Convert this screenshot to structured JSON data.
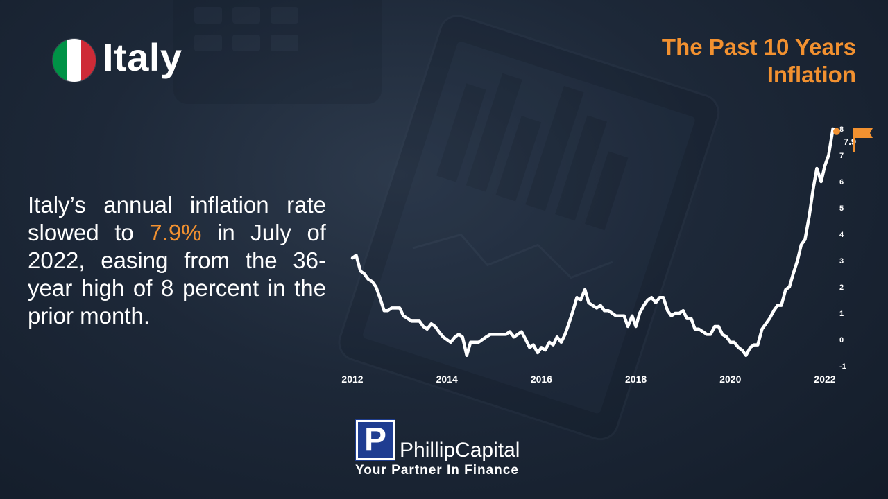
{
  "header": {
    "country": "Italy",
    "title_line1": "The Past 10 Years",
    "title_line2": "Inflation"
  },
  "description": {
    "before": "Italy’s annual inflation rate slowed to ",
    "highlight": "7.9%",
    "after": " in July of 2022, easing from the 36-year high of 8 percent in the prior month."
  },
  "brand": {
    "logo_letter": "P",
    "name": "PhillipCapital",
    "tagline": "Your Partner In Finance"
  },
  "colors": {
    "accent": "#f29130",
    "line": "#ffffff",
    "flag_green": "#009246",
    "flag_white": "#ffffff",
    "flag_red": "#ce2b37"
  },
  "icons": {
    "country_flag": "italy-flag-icon",
    "end_marker": "flag-icon"
  },
  "chart_data": {
    "type": "line",
    "title": "",
    "xlabel": "",
    "ylabel": "",
    "x_ticks": [
      "2012",
      "2014",
      "2016",
      "2018",
      "2020",
      "2022"
    ],
    "y_ticks": [
      -1,
      0,
      1,
      2,
      3,
      4,
      5,
      6,
      7,
      8
    ],
    "xlim": [
      2012,
      2022
    ],
    "ylim": [
      -1,
      8
    ],
    "grid": false,
    "end_label": "7.9",
    "series": [
      {
        "name": "",
        "points": [
          [
            2012.0,
            3.1
          ],
          [
            2012.08,
            3.2
          ],
          [
            2012.17,
            2.6
          ],
          [
            2012.25,
            2.5
          ],
          [
            2012.33,
            2.3
          ],
          [
            2012.42,
            2.2
          ],
          [
            2012.5,
            2.0
          ],
          [
            2012.58,
            1.6
          ],
          [
            2012.67,
            1.1
          ],
          [
            2012.75,
            1.1
          ],
          [
            2012.83,
            1.2
          ],
          [
            2012.92,
            1.2
          ],
          [
            2013.0,
            1.2
          ],
          [
            2013.08,
            0.9
          ],
          [
            2013.17,
            0.8
          ],
          [
            2013.25,
            0.7
          ],
          [
            2013.33,
            0.7
          ],
          [
            2013.42,
            0.7
          ],
          [
            2013.5,
            0.5
          ],
          [
            2013.58,
            0.4
          ],
          [
            2013.67,
            0.6
          ],
          [
            2013.75,
            0.5
          ],
          [
            2013.83,
            0.3
          ],
          [
            2013.92,
            0.1
          ],
          [
            2014.0,
            0.0
          ],
          [
            2014.08,
            -0.1
          ],
          [
            2014.17,
            0.1
          ],
          [
            2014.25,
            0.2
          ],
          [
            2014.33,
            0.1
          ],
          [
            2014.42,
            -0.6
          ],
          [
            2014.5,
            -0.1
          ],
          [
            2014.58,
            -0.1
          ],
          [
            2014.67,
            -0.1
          ],
          [
            2014.75,
            0.0
          ],
          [
            2014.83,
            0.1
          ],
          [
            2014.92,
            0.2
          ],
          [
            2015.0,
            0.2
          ],
          [
            2015.08,
            0.2
          ],
          [
            2015.17,
            0.2
          ],
          [
            2015.25,
            0.2
          ],
          [
            2015.33,
            0.3
          ],
          [
            2015.42,
            0.1
          ],
          [
            2015.5,
            0.2
          ],
          [
            2015.58,
            0.3
          ],
          [
            2015.67,
            0.0
          ],
          [
            2015.75,
            -0.3
          ],
          [
            2015.83,
            -0.2
          ],
          [
            2015.92,
            -0.5
          ],
          [
            2016.0,
            -0.3
          ],
          [
            2016.08,
            -0.4
          ],
          [
            2016.17,
            -0.1
          ],
          [
            2016.25,
            -0.2
          ],
          [
            2016.33,
            0.1
          ],
          [
            2016.42,
            -0.1
          ],
          [
            2016.5,
            0.2
          ],
          [
            2016.58,
            0.6
          ],
          [
            2016.67,
            1.1
          ],
          [
            2016.75,
            1.6
          ],
          [
            2016.83,
            1.5
          ],
          [
            2016.92,
            1.9
          ],
          [
            2017.0,
            1.4
          ],
          [
            2017.08,
            1.3
          ],
          [
            2017.17,
            1.2
          ],
          [
            2017.25,
            1.3
          ],
          [
            2017.33,
            1.1
          ],
          [
            2017.42,
            1.1
          ],
          [
            2017.5,
            1.0
          ],
          [
            2017.58,
            0.9
          ],
          [
            2017.67,
            0.9
          ],
          [
            2017.75,
            0.9
          ],
          [
            2017.83,
            0.5
          ],
          [
            2017.92,
            0.9
          ],
          [
            2018.0,
            0.5
          ],
          [
            2018.08,
            1.0
          ],
          [
            2018.17,
            1.3
          ],
          [
            2018.25,
            1.5
          ],
          [
            2018.33,
            1.6
          ],
          [
            2018.42,
            1.4
          ],
          [
            2018.5,
            1.6
          ],
          [
            2018.58,
            1.6
          ],
          [
            2018.67,
            1.1
          ],
          [
            2018.75,
            0.9
          ],
          [
            2018.83,
            1.0
          ],
          [
            2018.92,
            1.0
          ],
          [
            2019.0,
            1.1
          ],
          [
            2019.08,
            0.8
          ],
          [
            2019.17,
            0.8
          ],
          [
            2019.25,
            0.4
          ],
          [
            2019.33,
            0.4
          ],
          [
            2019.42,
            0.3
          ],
          [
            2019.5,
            0.2
          ],
          [
            2019.58,
            0.2
          ],
          [
            2019.67,
            0.5
          ],
          [
            2019.75,
            0.5
          ],
          [
            2019.83,
            0.2
          ],
          [
            2019.92,
            0.1
          ],
          [
            2020.0,
            -0.1
          ],
          [
            2020.08,
            -0.1
          ],
          [
            2020.17,
            -0.3
          ],
          [
            2020.25,
            -0.4
          ],
          [
            2020.33,
            -0.6
          ],
          [
            2020.42,
            -0.3
          ],
          [
            2020.5,
            -0.2
          ],
          [
            2020.58,
            -0.2
          ],
          [
            2020.67,
            0.4
          ],
          [
            2020.75,
            0.6
          ],
          [
            2020.83,
            0.8
          ],
          [
            2020.92,
            1.1
          ],
          [
            2021.0,
            1.3
          ],
          [
            2021.08,
            1.3
          ],
          [
            2021.17,
            1.9
          ],
          [
            2021.25,
            2.0
          ],
          [
            2021.33,
            2.5
          ],
          [
            2021.42,
            3.0
          ],
          [
            2021.5,
            3.6
          ],
          [
            2021.58,
            3.8
          ],
          [
            2021.67,
            4.7
          ],
          [
            2021.75,
            5.7
          ],
          [
            2021.83,
            6.5
          ],
          [
            2021.92,
            6.0
          ],
          [
            2022.0,
            6.6
          ],
          [
            2022.08,
            7.0
          ],
          [
            2022.17,
            8.0
          ],
          [
            2022.25,
            7.9
          ]
        ]
      }
    ]
  }
}
